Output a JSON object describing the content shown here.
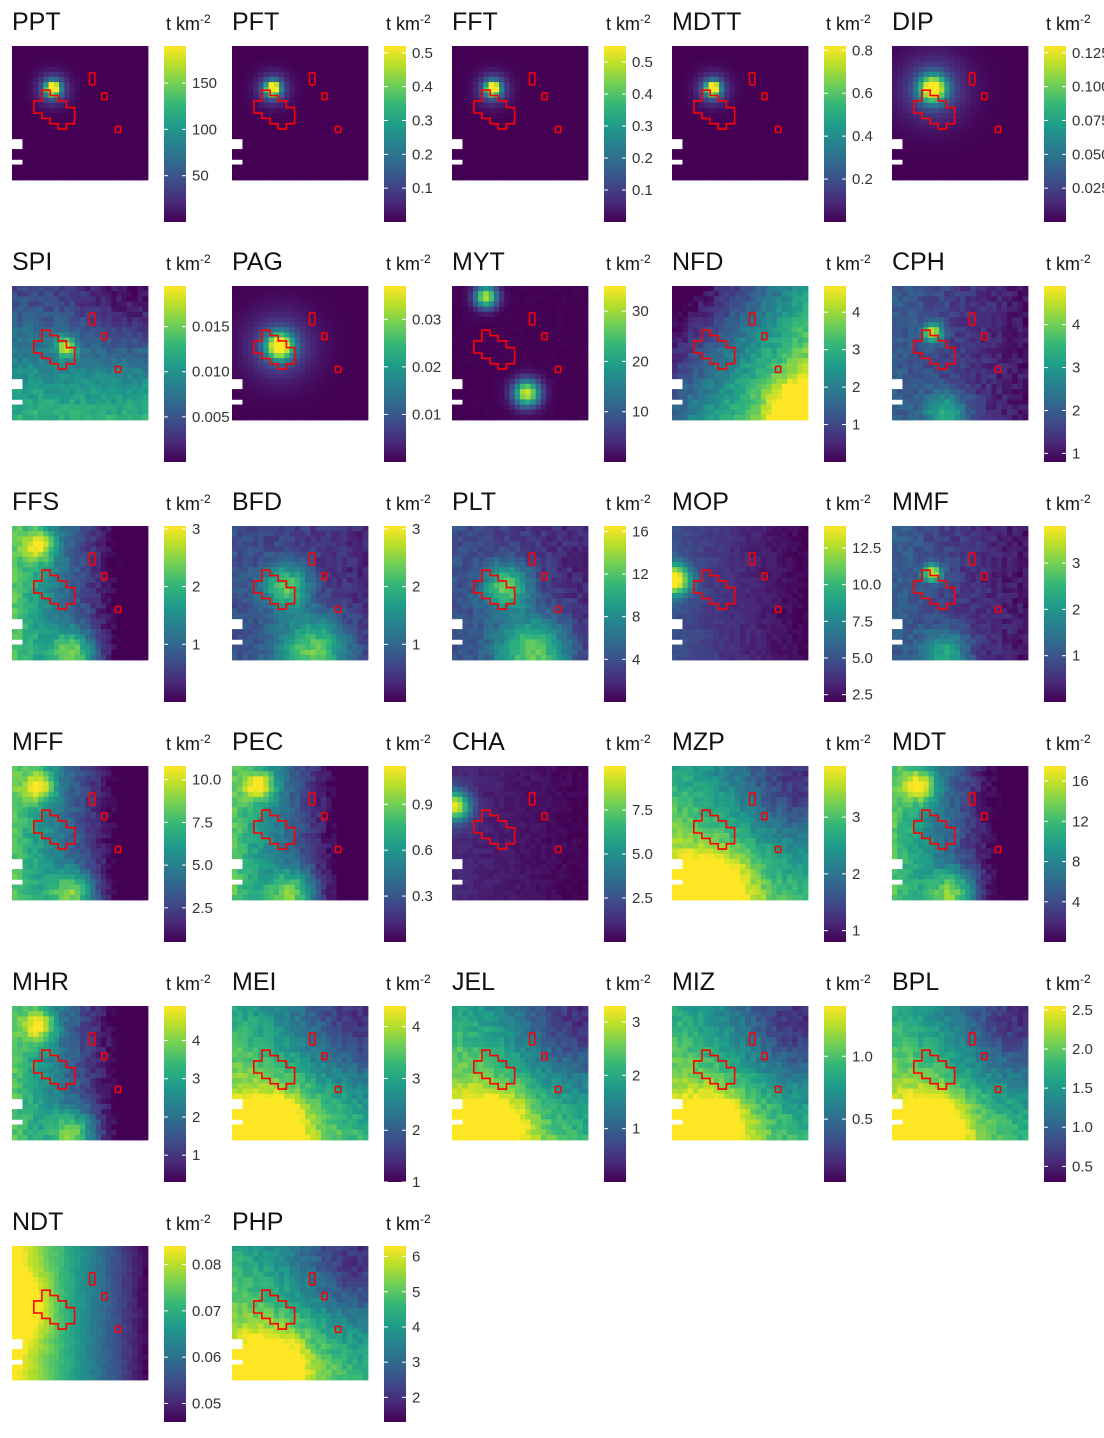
{
  "figure": {
    "unit": "t km",
    "unit_exp": "-2"
  },
  "colormap": [
    "#440154",
    "#482878",
    "#3e4a89",
    "#31688e",
    "#26828e",
    "#1f9e89",
    "#35b779",
    "#6ece58",
    "#b5de2b",
    "#fde725"
  ],
  "outline_color": "#ff0000",
  "chart_data": [
    {
      "type": "heatmap",
      "title": "PPT",
      "ticks": [
        50,
        100,
        150
      ],
      "cb_range": [
        0,
        190
      ],
      "pattern": "point",
      "hot": [
        0.3,
        0.32
      ]
    },
    {
      "type": "heatmap",
      "title": "PFT",
      "ticks": [
        0.1,
        0.2,
        0.3,
        0.4,
        0.5
      ],
      "cb_range": [
        0,
        0.52
      ],
      "pattern": "point",
      "hot": [
        0.3,
        0.32
      ]
    },
    {
      "type": "heatmap",
      "title": "FFT",
      "ticks": [
        0.1,
        0.2,
        0.3,
        0.4,
        0.5
      ],
      "cb_range": [
        0,
        0.55
      ],
      "pattern": "point",
      "hot": [
        0.3,
        0.32
      ]
    },
    {
      "type": "heatmap",
      "title": "MDTT",
      "ticks": [
        0.2,
        0.4,
        0.6,
        0.8
      ],
      "cb_range": [
        0,
        0.82
      ],
      "pattern": "point",
      "hot": [
        0.3,
        0.32
      ]
    },
    {
      "type": "heatmap",
      "title": "DIP",
      "ticks": [
        0.025,
        0.05,
        0.075,
        0.1,
        0.125
      ],
      "tick_labels": [
        "0.025",
        "0.050",
        "0.075",
        "0.100",
        "0.125"
      ],
      "cb_range": [
        0,
        0.13
      ],
      "pattern": "point",
      "hot": [
        0.3,
        0.32
      ],
      "spread": true
    },
    {
      "type": "heatmap",
      "title": "SPI",
      "ticks": [
        0.005,
        0.01,
        0.015
      ],
      "tick_labels": [
        "0.005",
        "0.010",
        "0.015"
      ],
      "cb_range": [
        0,
        0.0195
      ],
      "pattern": "spi"
    },
    {
      "type": "heatmap",
      "title": "PAG",
      "ticks": [
        0.01,
        0.02,
        0.03
      ],
      "cb_range": [
        0,
        0.037
      ],
      "pattern": "point",
      "hot": [
        0.35,
        0.45
      ],
      "spread": true
    },
    {
      "type": "heatmap",
      "title": "MYT",
      "ticks": [
        10,
        20,
        30
      ],
      "cb_range": [
        0,
        35
      ],
      "pattern": "myt"
    },
    {
      "type": "heatmap",
      "title": "NFD",
      "ticks": [
        1,
        2,
        3,
        4
      ],
      "cb_range": [
        0,
        4.7
      ],
      "pattern": "east"
    },
    {
      "type": "heatmap",
      "title": "CPH",
      "ticks": [
        1,
        2,
        3,
        4
      ],
      "cb_range": [
        0.8,
        4.9
      ],
      "pattern": "cph"
    },
    {
      "type": "heatmap",
      "title": "FFS",
      "ticks": [
        1,
        2,
        3
      ],
      "cb_range": [
        0,
        3.05
      ],
      "pattern": "west"
    },
    {
      "type": "heatmap",
      "title": "BFD",
      "ticks": [
        1,
        2,
        3
      ],
      "cb_range": [
        0,
        3.05
      ],
      "pattern": "bfd"
    },
    {
      "type": "heatmap",
      "title": "PLT",
      "ticks": [
        4,
        8,
        12,
        16
      ],
      "cb_range": [
        0,
        16.5
      ],
      "pattern": "bfd"
    },
    {
      "type": "heatmap",
      "title": "MOP",
      "ticks": [
        2.5,
        5,
        7.5,
        10,
        12.5
      ],
      "tick_labels": [
        "2.5",
        "5.0",
        "7.5",
        "10.0",
        "12.5"
      ],
      "cb_range": [
        2,
        14
      ],
      "pattern": "mop"
    },
    {
      "type": "heatmap",
      "title": "MMF",
      "ticks": [
        1,
        2,
        3
      ],
      "cb_range": [
        0,
        3.8
      ],
      "pattern": "cph"
    },
    {
      "type": "heatmap",
      "title": "MFF",
      "ticks": [
        2.5,
        5,
        7.5,
        10
      ],
      "tick_labels": [
        "2.5",
        "5.0",
        "7.5",
        "10.0"
      ],
      "cb_range": [
        0.5,
        10.8
      ],
      "pattern": "west"
    },
    {
      "type": "heatmap",
      "title": "PEC",
      "ticks": [
        0.3,
        0.6,
        0.9
      ],
      "cb_range": [
        0,
        1.15
      ],
      "pattern": "west"
    },
    {
      "type": "heatmap",
      "title": "CHA",
      "ticks": [
        2.5,
        5,
        7.5
      ],
      "tick_labels": [
        "2.5",
        "5.0",
        "7.5"
      ],
      "cb_range": [
        0,
        10
      ],
      "pattern": "cha"
    },
    {
      "type": "heatmap",
      "title": "MZP",
      "ticks": [
        1,
        2,
        3
      ],
      "cb_range": [
        0.8,
        3.9
      ],
      "pattern": "south"
    },
    {
      "type": "heatmap",
      "title": "MDT",
      "ticks": [
        4,
        8,
        12,
        16
      ],
      "cb_range": [
        0,
        17.5
      ],
      "pattern": "west"
    },
    {
      "type": "heatmap",
      "title": "MHR",
      "ticks": [
        1,
        2,
        3,
        4
      ],
      "cb_range": [
        0.3,
        4.9
      ],
      "pattern": "west"
    },
    {
      "type": "heatmap",
      "title": "MEI",
      "ticks": [
        1,
        2,
        3,
        4
      ],
      "cb_range": [
        1,
        4.4
      ],
      "pattern": "south"
    },
    {
      "type": "heatmap",
      "title": "JEL",
      "ticks": [
        1,
        2,
        3
      ],
      "cb_range": [
        0,
        3.3
      ],
      "pattern": "south"
    },
    {
      "type": "heatmap",
      "title": "MIZ",
      "ticks": [
        0.5,
        1
      ],
      "tick_labels": [
        "0.5",
        "1.0"
      ],
      "cb_range": [
        0,
        1.4
      ],
      "pattern": "south"
    },
    {
      "type": "heatmap",
      "title": "BPL",
      "ticks": [
        0.5,
        1,
        1.5,
        2,
        2.5
      ],
      "tick_labels": [
        "0.5",
        "1.0",
        "1.5",
        "2.0",
        "2.5"
      ],
      "cb_range": [
        0.3,
        2.55
      ],
      "pattern": "south"
    },
    {
      "type": "heatmap",
      "title": "NDT",
      "ticks": [
        0.05,
        0.06,
        0.07,
        0.08
      ],
      "tick_labels": [
        "0.05",
        "0.06",
        "0.07",
        "0.08"
      ],
      "cb_range": [
        0.046,
        0.084
      ],
      "pattern": "ndt"
    },
    {
      "type": "heatmap",
      "title": "PHP",
      "ticks": [
        2,
        3,
        4,
        5,
        6
      ],
      "cb_range": [
        1.3,
        6.3
      ],
      "pattern": "south"
    }
  ]
}
